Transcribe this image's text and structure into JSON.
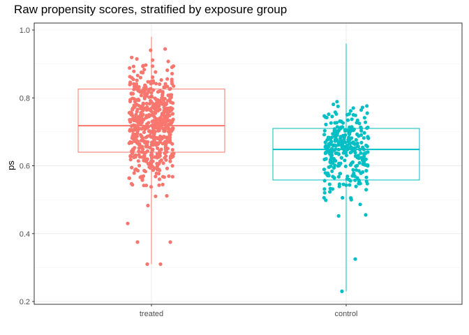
{
  "chart_data": {
    "type": "boxplot-jitter",
    "title": "Raw propensity scores, stratified by exposure group",
    "xlabel": "",
    "ylabel": "ps",
    "ylim": [
      0.2,
      1.0
    ],
    "yticks": [
      "0.2",
      "0.4",
      "0.6",
      "0.8",
      "1.0"
    ],
    "grid": true,
    "legend": "none",
    "categories": [
      "treated",
      "control"
    ],
    "colors": {
      "treated": "#F8766D",
      "control": "#00BFC4"
    },
    "boxes": [
      {
        "group": "treated",
        "min": 0.31,
        "q1": 0.64,
        "median": 0.718,
        "q3": 0.826,
        "max": 0.98
      },
      {
        "group": "control",
        "min": 0.23,
        "q1": 0.558,
        "median": 0.648,
        "q3": 0.71,
        "max": 0.96
      }
    ],
    "points_visible": {
      "treated": {
        "count_approx": 600,
        "outliers": [
          0.31,
          0.31,
          0.375,
          0.375,
          0.43
        ]
      },
      "control": {
        "count_approx": 300,
        "outliers": [
          0.23,
          0.325
        ]
      }
    }
  }
}
